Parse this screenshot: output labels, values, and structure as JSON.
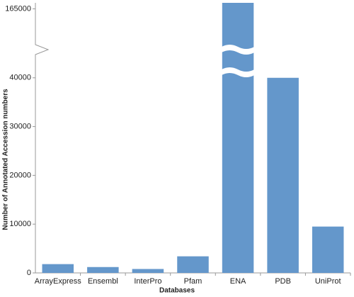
{
  "chart_data": {
    "type": "bar",
    "x_label": "Databases",
    "y_label": "Number of Annotated Accession numbers",
    "categories": [
      "ArrayExpress",
      "Ensembl",
      "InterPro",
      "Pfam",
      "ENA",
      "PDB",
      "UniProt"
    ],
    "values": [
      1800,
      1200,
      800,
      3400,
      166000,
      40000,
      9500
    ],
    "color": "#6497cb",
    "ylim": [
      0,
      166000
    ],
    "axis_break": [
      42000,
      160000
    ],
    "yticks": [
      0,
      10000,
      20000,
      30000,
      40000,
      165000
    ],
    "grid": false
  }
}
